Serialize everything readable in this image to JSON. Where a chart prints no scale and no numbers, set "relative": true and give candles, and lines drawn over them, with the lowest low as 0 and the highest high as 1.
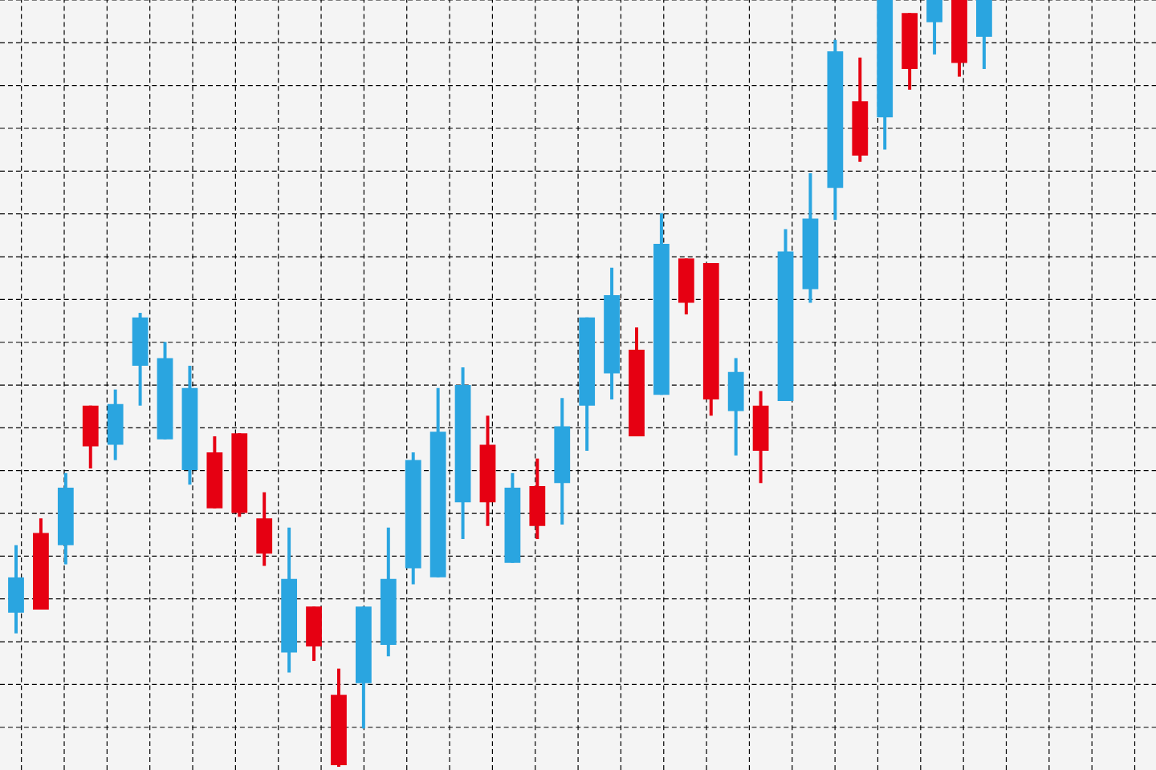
{
  "chart_data": {
    "type": "candlestick",
    "relative": true,
    "grid": true,
    "categories": [
      null,
      null,
      null,
      null,
      null,
      null,
      null,
      null,
      null,
      null,
      null,
      null,
      null,
      null,
      null,
      null,
      null,
      null,
      null,
      null,
      null,
      null,
      null,
      null,
      null,
      null,
      null,
      null,
      null,
      null,
      null,
      null,
      null,
      null,
      null,
      null,
      null,
      null,
      null,
      null
    ],
    "ohlc": [
      [
        0.201,
        0.289,
        0.174,
        0.247
      ],
      [
        0.305,
        0.324,
        0.205,
        0.205
      ],
      [
        0.289,
        0.383,
        0.264,
        0.364
      ],
      [
        0.471,
        0.471,
        0.389,
        0.418
      ],
      [
        0.42,
        0.492,
        0.4,
        0.473
      ],
      [
        0.523,
        0.592,
        0.471,
        0.586
      ],
      [
        0.427,
        0.554,
        0.427,
        0.533
      ],
      [
        0.387,
        0.523,
        0.368,
        0.494
      ],
      [
        0.41,
        0.431,
        0.337,
        0.337
      ],
      [
        0.435,
        0.435,
        0.326,
        0.331
      ],
      [
        0.324,
        0.358,
        0.262,
        0.278
      ],
      [
        0.149,
        0.312,
        0.123,
        0.245
      ],
      [
        0.209,
        0.209,
        0.138,
        0.157
      ],
      [
        0.094,
        0.128,
        0.0,
        0.002
      ],
      [
        0.109,
        0.209,
        0.05,
        0.209
      ],
      [
        0.159,
        0.312,
        0.144,
        0.245
      ],
      [
        0.259,
        0.41,
        0.238,
        0.4
      ],
      [
        0.247,
        0.494,
        0.247,
        0.437
      ],
      [
        0.345,
        0.521,
        0.297,
        0.498
      ],
      [
        0.42,
        0.458,
        0.314,
        0.345
      ],
      [
        0.266,
        0.383,
        0.266,
        0.364
      ],
      [
        0.366,
        0.402,
        0.297,
        0.314
      ],
      [
        0.37,
        0.481,
        0.316,
        0.444
      ],
      [
        0.471,
        0.586,
        0.412,
        0.586
      ],
      [
        0.513,
        0.651,
        0.479,
        0.615
      ],
      [
        0.544,
        0.573,
        0.431,
        0.431
      ],
      [
        0.485,
        0.722,
        0.485,
        0.682
      ],
      [
        0.663,
        0.663,
        0.59,
        0.605
      ],
      [
        0.657,
        0.657,
        0.458,
        0.479
      ],
      [
        0.464,
        0.533,
        0.406,
        0.515
      ],
      [
        0.471,
        0.49,
        0.37,
        0.412
      ],
      [
        0.477,
        0.701,
        0.477,
        0.672
      ],
      [
        0.623,
        0.774,
        0.605,
        0.715
      ],
      [
        0.755,
        0.948,
        0.713,
        0.933
      ],
      [
        0.868,
        0.925,
        0.789,
        0.797
      ],
      [
        0.847,
        1.0,
        0.805,
        1.0
      ],
      [
        0.983,
        0.983,
        0.883,
        0.91
      ],
      [
        0.971,
        1.0,
        0.929,
        1.0
      ],
      [
        1.0,
        1.0,
        0.9,
        0.918
      ],
      [
        0.952,
        1.0,
        0.91,
        1.0
      ]
    ],
    "colors": [
      "#2aa5e0",
      "#e60012",
      "#2aa5e0",
      "#e60012",
      "#2aa5e0",
      "#2aa5e0",
      "#2aa5e0",
      "#2aa5e0",
      "#e60012",
      "#e60012",
      "#e60012",
      "#2aa5e0",
      "#e60012",
      "#e60012",
      "#2aa5e0",
      "#2aa5e0",
      "#2aa5e0",
      "#2aa5e0",
      "#2aa5e0",
      "#e60012",
      "#2aa5e0",
      "#e60012",
      "#2aa5e0",
      "#2aa5e0",
      "#2aa5e0",
      "#e60012",
      "#2aa5e0",
      "#e60012",
      "#e60012",
      "#2aa5e0",
      "#e60012",
      "#2aa5e0",
      "#2aa5e0",
      "#2aa5e0",
      "#e60012",
      "#2aa5e0",
      "#e60012",
      "#2aa5e0",
      "#e60012",
      "#2aa5e0"
    ]
  }
}
